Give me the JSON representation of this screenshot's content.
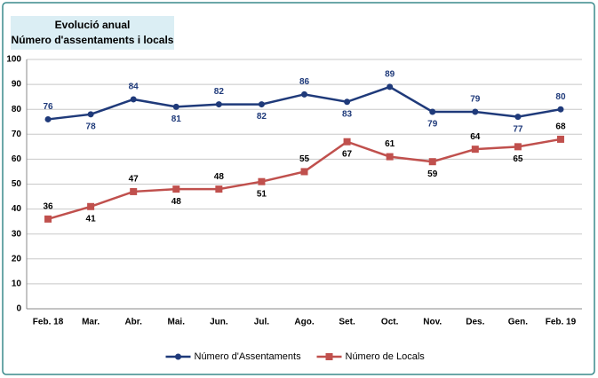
{
  "chart_data": {
    "type": "line",
    "title": "Evolució anual",
    "subtitle": "Número d'assentaments i locals",
    "categories": [
      "Feb. 18",
      "Mar.",
      "Abr.",
      "Mai.",
      "Jun.",
      "Jul.",
      "Ago.",
      "Set.",
      "Oct.",
      "Nov.",
      "Des.",
      "Gen.",
      "Feb. 19"
    ],
    "series": [
      {
        "name": "Número d'Assentaments",
        "color": "#1f3a7a",
        "marker": "circle",
        "values": [
          76,
          78,
          84,
          81,
          82,
          82,
          86,
          83,
          89,
          79,
          79,
          77,
          80
        ]
      },
      {
        "name": "Número de Locals",
        "color": "#c0504d",
        "marker": "square",
        "values": [
          36,
          41,
          47,
          48,
          48,
          51,
          55,
          67,
          61,
          59,
          64,
          65,
          68
        ]
      }
    ],
    "ylim": [
      0,
      100
    ],
    "yticks": [
      0,
      10,
      20,
      30,
      40,
      50,
      60,
      70,
      80,
      90,
      100
    ],
    "grid": true,
    "legend": "bottom"
  }
}
